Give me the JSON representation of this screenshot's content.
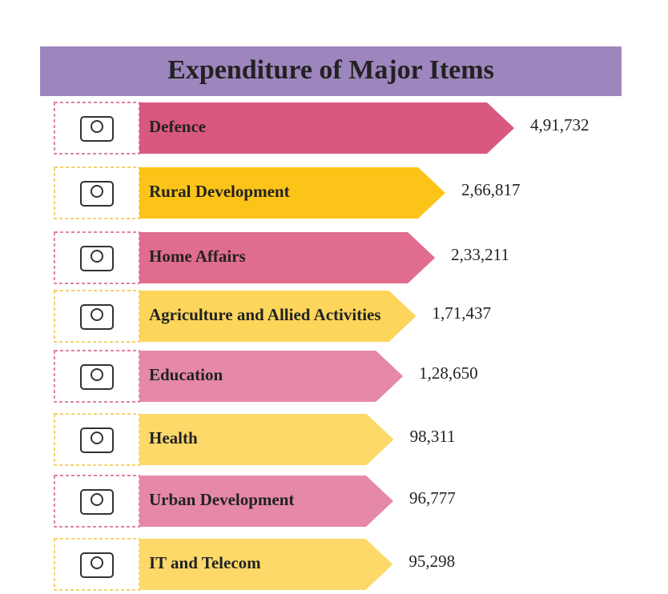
{
  "chart_data": {
    "type": "bar",
    "orientation": "horizontal",
    "title": "Expenditure of Major Items",
    "categories": [
      "Defence",
      "Rural Development",
      "Home Affairs",
      "Agriculture and Allied Activities",
      "Education",
      "Health",
      "Urban Development",
      "IT and Telecom"
    ],
    "values": [
      491732,
      266817,
      233211,
      171437,
      128650,
      98311,
      96777,
      95298
    ],
    "value_labels": [
      "4,91,732",
      "2,66,817",
      "2,33,211",
      "1,71,437",
      "1,28,650",
      "98,311",
      "96,777",
      "95,298"
    ],
    "colors": [
      "#d95880",
      "#fcc419",
      "#e06c8e",
      "#fdd55a",
      "#e589a6",
      "#fdd96a",
      "#e589a6",
      "#fdd96a"
    ]
  }
}
